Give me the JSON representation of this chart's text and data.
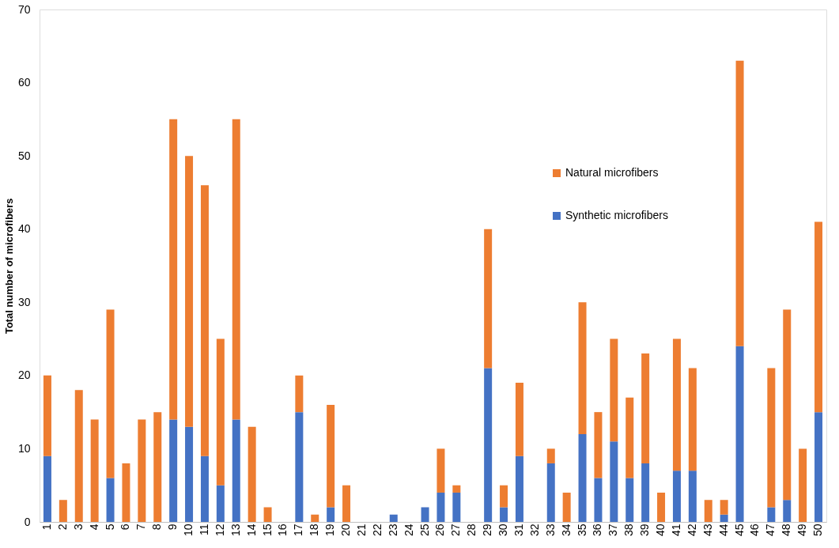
{
  "chart_data": {
    "type": "bar",
    "stacked": true,
    "ylabel": "Total number of microfibers",
    "categories": [
      "1",
      "2",
      "3",
      "4",
      "5",
      "6",
      "7",
      "8",
      "9",
      "10",
      "11",
      "12",
      "13",
      "14",
      "15",
      "16",
      "17",
      "18",
      "19",
      "20",
      "21",
      "22",
      "23",
      "24",
      "25",
      "26",
      "27",
      "28",
      "29",
      "30",
      "31",
      "32",
      "33",
      "34",
      "35",
      "36",
      "37",
      "38",
      "39",
      "40",
      "41",
      "42",
      "43",
      "44",
      "45",
      "46",
      "47",
      "48",
      "49",
      "50"
    ],
    "series": [
      {
        "name": "Synthetic microfibers",
        "color": "#4472c4",
        "values": [
          9,
          0,
          0,
          0,
          6,
          0,
          0,
          0,
          14,
          13,
          9,
          5,
          14,
          0,
          0,
          0,
          15,
          0,
          2,
          0,
          0,
          0,
          1,
          0,
          2,
          4,
          4,
          0,
          21,
          2,
          9,
          0,
          8,
          0,
          12,
          6,
          11,
          6,
          8,
          0,
          7,
          7,
          0,
          1,
          24,
          0,
          2,
          3,
          0,
          15
        ]
      },
      {
        "name": "Natural microfibers",
        "color": "#ed7d31",
        "values": [
          11,
          3,
          18,
          14,
          23,
          8,
          14,
          15,
          41,
          37,
          37,
          20,
          41,
          13,
          2,
          0,
          5,
          1,
          14,
          5,
          0,
          0,
          0,
          0,
          0,
          6,
          1,
          0,
          19,
          3,
          10,
          0,
          2,
          4,
          18,
          9,
          14,
          11,
          15,
          4,
          18,
          14,
          3,
          2,
          39,
          0,
          19,
          26,
          10,
          26
        ]
      }
    ],
    "ylim": [
      0,
      70
    ],
    "yticks": [
      0,
      10,
      20,
      30,
      40,
      50,
      60,
      70
    ],
    "grid": false,
    "legend": "top right"
  }
}
